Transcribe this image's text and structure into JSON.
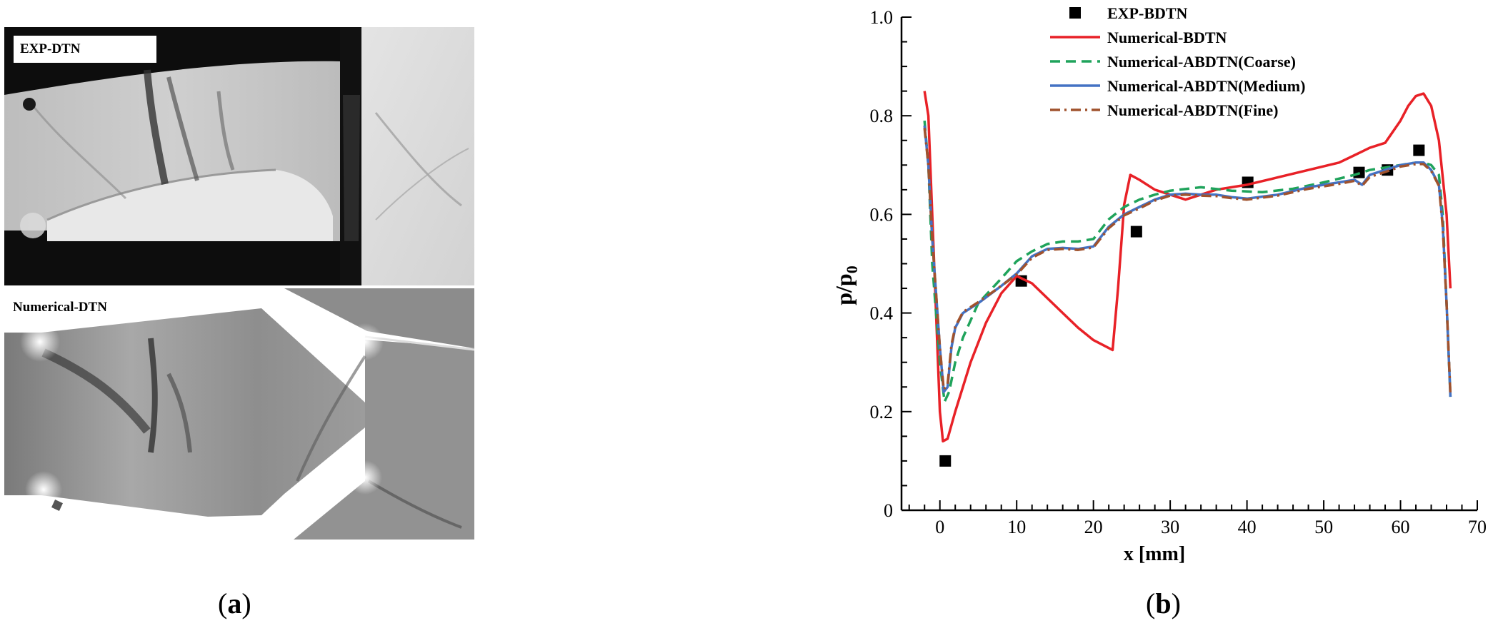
{
  "panel_a": {
    "exp_label": "EXP-DTN",
    "num_label": "Numerical-DTN",
    "caption_open": "(",
    "caption_letter": "a",
    "caption_close": ")"
  },
  "panel_b": {
    "caption_open": "(",
    "caption_letter": "b",
    "caption_close": ")"
  },
  "chart_data": {
    "type": "line",
    "xlabel": "x [mm]",
    "ylabel": "p/p0",
    "xlim": [
      -5,
      70
    ],
    "ylim": [
      0,
      1.0
    ],
    "xticks": [
      0,
      10,
      20,
      30,
      40,
      50,
      60,
      70
    ],
    "yticks": [
      0,
      0.2,
      0.4,
      0.6,
      0.8,
      1.0
    ],
    "ytick_labels": [
      "0",
      "0.2",
      "0.4",
      "0.6",
      "0.8",
      "1.0"
    ],
    "legend_position": "top-right",
    "series": [
      {
        "name": "EXP-BDTN",
        "kind": "scatter",
        "color": "#000000",
        "x": [
          0.7,
          10.6,
          25.6,
          40.1,
          54.6,
          58.3,
          62.4
        ],
        "y": [
          0.1,
          0.465,
          0.565,
          0.665,
          0.685,
          0.69,
          0.73
        ]
      },
      {
        "name": "Numerical-BDTN",
        "kind": "line",
        "style": "solid",
        "color": "#e82127",
        "x": [
          -2,
          -1.5,
          -1,
          0,
          0.4,
          1,
          2,
          4,
          6,
          8,
          10,
          12,
          14,
          16,
          18,
          20,
          22.5,
          23.2,
          24,
          24.8,
          26,
          28,
          30,
          32,
          34,
          36,
          38,
          40,
          44,
          48,
          52,
          54,
          56,
          58,
          60,
          61,
          62,
          63,
          64,
          65,
          66,
          66.5
        ],
        "y": [
          0.85,
          0.8,
          0.6,
          0.2,
          0.14,
          0.145,
          0.2,
          0.3,
          0.38,
          0.44,
          0.475,
          0.46,
          0.43,
          0.4,
          0.37,
          0.345,
          0.325,
          0.45,
          0.62,
          0.68,
          0.67,
          0.65,
          0.64,
          0.63,
          0.64,
          0.65,
          0.655,
          0.66,
          0.675,
          0.69,
          0.705,
          0.72,
          0.735,
          0.745,
          0.79,
          0.82,
          0.84,
          0.845,
          0.82,
          0.75,
          0.6,
          0.45
        ]
      },
      {
        "name": "Numerical-ABDTN(Coarse)",
        "kind": "line",
        "style": "dashed",
        "color": "#1fa35b",
        "x": [
          -2,
          -1.5,
          -1,
          0,
          0.6,
          1.2,
          2,
          3,
          5,
          8,
          10,
          12,
          14,
          16,
          18,
          20,
          22,
          24,
          26,
          28,
          30,
          34,
          38,
          42,
          46,
          50,
          54,
          56,
          58,
          60,
          62,
          63,
          64,
          65,
          65.5,
          66,
          66.5
        ],
        "y": [
          0.79,
          0.7,
          0.5,
          0.3,
          0.22,
          0.24,
          0.3,
          0.35,
          0.42,
          0.47,
          0.505,
          0.525,
          0.54,
          0.545,
          0.545,
          0.55,
          0.59,
          0.615,
          0.63,
          0.64,
          0.648,
          0.655,
          0.648,
          0.645,
          0.652,
          0.665,
          0.68,
          0.69,
          0.695,
          0.7,
          0.705,
          0.705,
          0.7,
          0.68,
          0.6,
          0.42,
          0.23
        ]
      },
      {
        "name": "Numerical-ABDTN(Medium)",
        "kind": "line",
        "style": "solid",
        "color": "#4472c4",
        "x": [
          -2,
          -1.5,
          -1,
          0,
          0.5,
          1,
          1.5,
          2,
          3,
          5,
          8,
          10,
          12,
          14,
          16,
          18,
          20,
          22,
          24,
          26,
          28,
          30,
          32,
          34,
          36,
          38,
          40,
          44,
          48,
          52,
          54,
          55,
          56,
          58,
          60,
          62,
          63,
          64,
          65,
          65.5,
          66,
          66.5
        ],
        "y": [
          0.78,
          0.7,
          0.55,
          0.33,
          0.24,
          0.25,
          0.33,
          0.37,
          0.4,
          0.42,
          0.455,
          0.48,
          0.515,
          0.53,
          0.532,
          0.53,
          0.535,
          0.575,
          0.6,
          0.615,
          0.63,
          0.64,
          0.642,
          0.64,
          0.64,
          0.635,
          0.632,
          0.64,
          0.655,
          0.665,
          0.67,
          0.66,
          0.68,
          0.69,
          0.7,
          0.705,
          0.705,
          0.69,
          0.66,
          0.58,
          0.42,
          0.23
        ]
      },
      {
        "name": "Numerical-ABDTN(Fine)",
        "kind": "line",
        "style": "dashdot",
        "color": "#a0522d",
        "x": [
          -2,
          -1.5,
          -1,
          0,
          0.5,
          1,
          1.5,
          2,
          3,
          5,
          8,
          10,
          12,
          14,
          16,
          18,
          20,
          22,
          24,
          26,
          28,
          30,
          32,
          34,
          36,
          38,
          40,
          44,
          48,
          52,
          54,
          55,
          56,
          58,
          60,
          62,
          63,
          64,
          65,
          65.5,
          66,
          66.5
        ],
        "y": [
          0.775,
          0.7,
          0.55,
          0.33,
          0.245,
          0.255,
          0.335,
          0.372,
          0.402,
          0.422,
          0.455,
          0.478,
          0.512,
          0.528,
          0.53,
          0.528,
          0.533,
          0.572,
          0.598,
          0.612,
          0.628,
          0.638,
          0.64,
          0.638,
          0.637,
          0.633,
          0.63,
          0.638,
          0.652,
          0.662,
          0.668,
          0.658,
          0.676,
          0.686,
          0.697,
          0.702,
          0.702,
          0.688,
          0.658,
          0.575,
          0.42,
          0.235
        ]
      }
    ]
  }
}
